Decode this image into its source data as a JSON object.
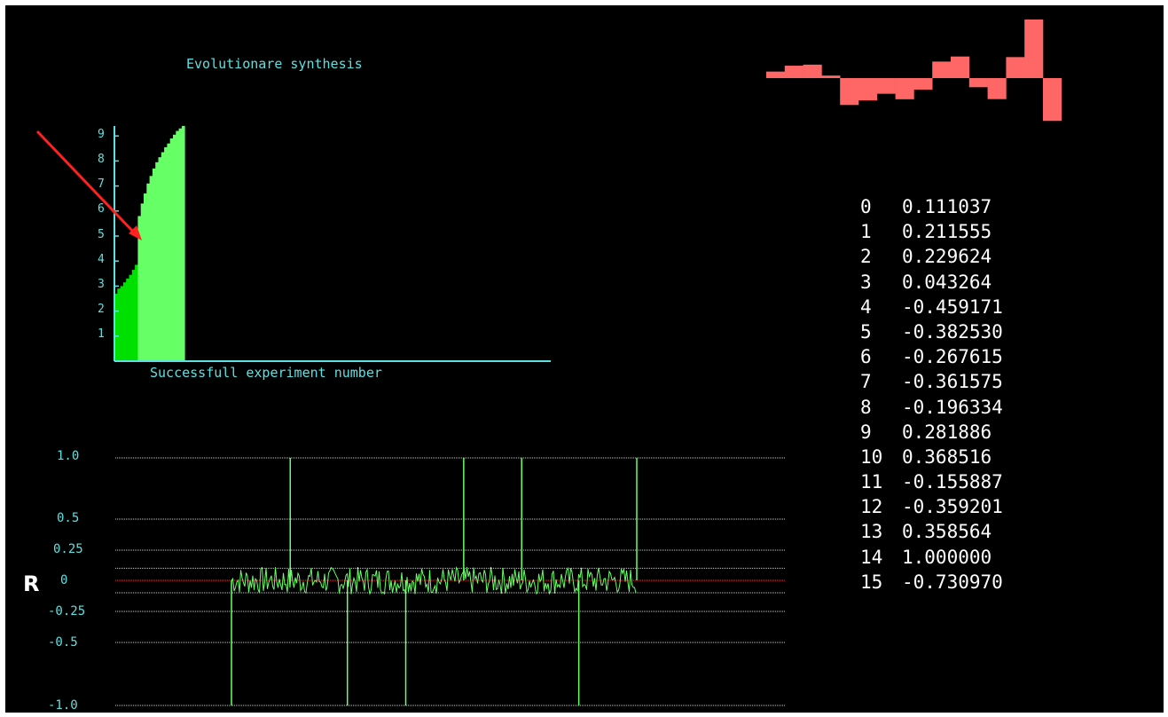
{
  "colors": {
    "background": "#000000",
    "axis": "#5fe0e0",
    "bar_dark": "#00e000",
    "bar_light": "#66ff66",
    "signal": "#66ff66",
    "zero_line": "#ff3333",
    "waveform": "#ff6666",
    "arrow": "#ff2020",
    "text": "#ffffff"
  },
  "synthesis_chart": {
    "title": "Evolutionare synthesis",
    "xlabel": "Successfull experiment number",
    "yticks": [
      "1",
      "2",
      "3",
      "4",
      "5",
      "6",
      "7",
      "8",
      "9"
    ]
  },
  "chart_data": [
    {
      "type": "area",
      "title": "Evolutionare synthesis",
      "xlabel": "Successfull experiment number",
      "ylabel": "",
      "ylim": [
        0,
        9.5
      ],
      "yticks": [
        1,
        2,
        3,
        4,
        5,
        6,
        7,
        8,
        9
      ],
      "series": [
        {
          "values": [
            2.7,
            2.9,
            3.0,
            3.15,
            3.3,
            3.45,
            3.65,
            3.85
          ]
        },
        {
          "values": [
            5.8,
            6.3,
            6.7,
            7.1,
            7.4,
            7.7,
            7.95,
            8.15,
            8.35,
            8.55,
            8.7,
            8.9,
            9.05,
            9.2,
            9.3,
            9.4
          ]
        }
      ]
    },
    {
      "type": "line",
      "ylabel": "R",
      "ylim": [
        -1.0,
        1.0
      ],
      "yticks": [
        "1.0",
        "0.5",
        "0.25",
        "0",
        "-0.25",
        "-0.5",
        "-1.0"
      ],
      "spikes": [
        {
          "position": 0.0,
          "value": -1.0
        },
        {
          "position": 0.145,
          "value": 1.0
        },
        {
          "position": 0.286,
          "value": -1.0
        },
        {
          "position": 0.43,
          "value": -1.0
        },
        {
          "position": 0.573,
          "value": 1.0
        },
        {
          "position": 0.716,
          "value": 1.0
        },
        {
          "position": 0.857,
          "value": -1.0
        },
        {
          "position": 1.0,
          "value": 1.0
        }
      ],
      "noise_amplitude": 0.15
    },
    {
      "type": "bar",
      "description_values": [
        0.111037,
        0.211555,
        0.229624,
        0.043264,
        -0.459171,
        -0.38253,
        -0.267615,
        -0.361575,
        -0.196334,
        0.281886,
        0.368516,
        -0.155887,
        -0.359201,
        0.358564,
        1.0,
        -0.73097
      ]
    }
  ],
  "r_chart": {
    "symbol": "R",
    "yticks": [
      "1.0",
      "0.5",
      "0.25",
      "0",
      "-0.25",
      "-0.5",
      "-1.0"
    ]
  },
  "coefficients": [
    {
      "index": "0",
      "value": "0.111037"
    },
    {
      "index": "1",
      "value": "0.211555"
    },
    {
      "index": "2",
      "value": "0.229624"
    },
    {
      "index": "3",
      "value": "0.043264"
    },
    {
      "index": "4",
      "value": "-0.459171"
    },
    {
      "index": "5",
      "value": "-0.382530"
    },
    {
      "index": "6",
      "value": "-0.267615"
    },
    {
      "index": "7",
      "value": "-0.361575"
    },
    {
      "index": "8",
      "value": "-0.196334"
    },
    {
      "index": "9",
      "value": "0.281886"
    },
    {
      "index": "10",
      "value": "0.368516"
    },
    {
      "index": "11",
      "value": "-0.155887"
    },
    {
      "index": "12",
      "value": "-0.359201"
    },
    {
      "index": "13",
      "value": "0.358564"
    },
    {
      "index": "14",
      "value": "1.000000"
    },
    {
      "index": "15",
      "value": "-0.730970"
    }
  ]
}
